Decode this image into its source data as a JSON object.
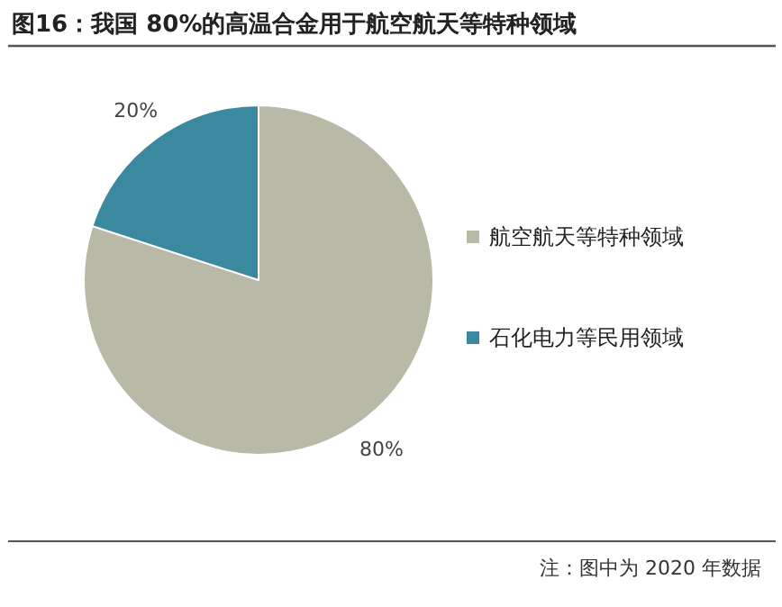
{
  "chart_data": {
    "type": "pie",
    "title": "图16：我国 80%的高温合金用于航空航天等特种领域",
    "categories": [
      "航空航天等特种领域",
      "石化电力等民用领域"
    ],
    "values": [
      80,
      20
    ],
    "colors": [
      "#b8b9a7",
      "#3b899f"
    ],
    "value_labels": [
      "80%",
      "20%"
    ],
    "legend": "right",
    "annotations": [
      "注：图中为 2020 年数据"
    ]
  }
}
